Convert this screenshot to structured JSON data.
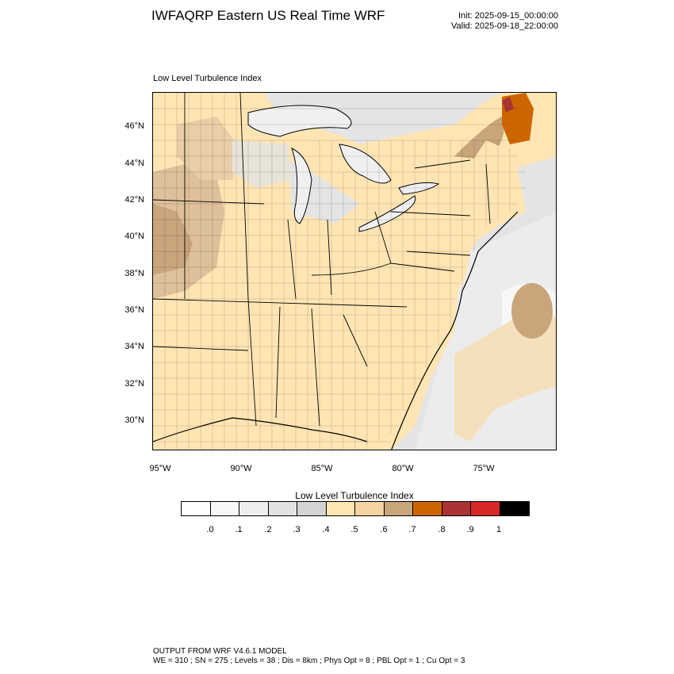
{
  "header": {
    "title": "IWFAQRP Eastern US Real Time WRF",
    "init": "Init: 2025-09-15_00:00:00",
    "valid": "Valid: 2025-09-18_22:00:00"
  },
  "plot": {
    "subtitle": "Low Level Turbulence Index",
    "lat_labels": [
      "46°N",
      "44°N",
      "42°N",
      "40°N",
      "38°N",
      "36°N",
      "34°N",
      "32°N",
      "30°N"
    ],
    "lon_labels": [
      "95°W",
      "90°W",
      "85°W",
      "80°W",
      "75°W"
    ]
  },
  "colorbar": {
    "title": "Low Level Turbulence Index",
    "colors": [
      "#ffffff",
      "#f7f7f7",
      "#eeeeee",
      "#e2e2e2",
      "#d3d3d3",
      "#ffe5b3",
      "#f5d3a3",
      "#c9a57c",
      "#cc6600",
      "#aa3333",
      "#d62828",
      "#000000"
    ],
    "labels": [
      ".0",
      ".1",
      ".2",
      ".3",
      ".4",
      ".5",
      ".6",
      ".7",
      ".8",
      ".9",
      "1"
    ]
  },
  "footer": {
    "line1": "OUTPUT FROM WRF V4.6.1 MODEL",
    "line2": "WE = 310 ; SN = 275 ; Levels = 38 ; Dis = 8km ; Phys Opt = 8 ; PBL Opt = 1 ; Cu Opt = 3"
  }
}
